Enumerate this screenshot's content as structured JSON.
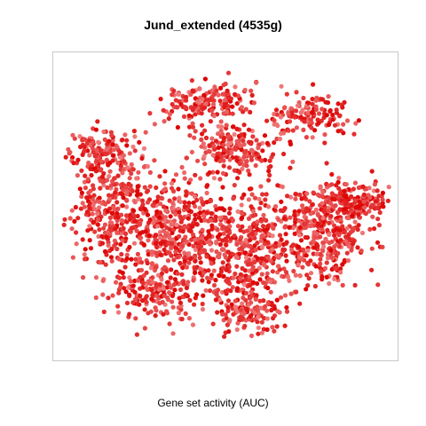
{
  "chart_data": {
    "type": "scatter",
    "title": "Jund_extended (4535g)",
    "xlabel": "Gene set activity (AUC)",
    "ylabel": "",
    "axes_visible": false,
    "grid": false,
    "legend": "none",
    "point_count": 4535,
    "color_scale": {
      "low": "#f08080",
      "high": "#dd0000"
    },
    "frame_color": "#c8c8c8"
  }
}
